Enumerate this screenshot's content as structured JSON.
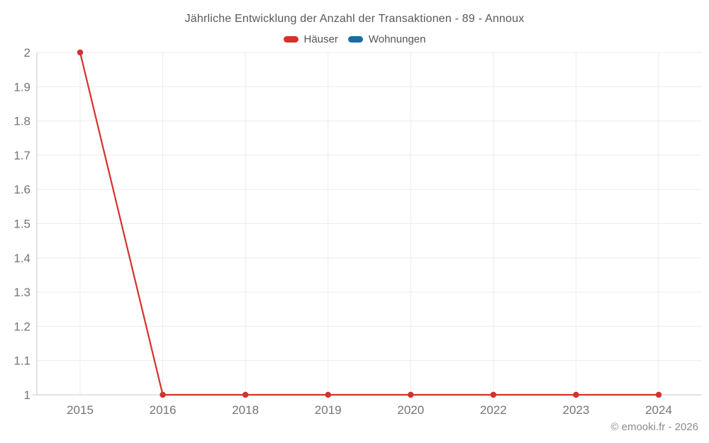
{
  "chart_data": {
    "type": "line",
    "title": "Jährliche Entwicklung der Anzahl der Transaktionen - 89 - Annoux",
    "categories": [
      "2015",
      "2016",
      "2018",
      "2019",
      "2020",
      "2022",
      "2023",
      "2024"
    ],
    "series": [
      {
        "name": "Häuser",
        "color": "#d5312d",
        "values": [
          2,
          1,
          1,
          1,
          1,
          1,
          1,
          1
        ]
      },
      {
        "name": "Wohnungen",
        "color": "#1a6ca8",
        "values": []
      }
    ],
    "ylim": [
      1,
      2
    ],
    "yticks": [
      1,
      1.1,
      1.2,
      1.3,
      1.4,
      1.5,
      1.6,
      1.7,
      1.8,
      1.9,
      2
    ],
    "ytick_labels": [
      "1",
      "1.1",
      "1.2",
      "1.3",
      "1.4",
      "1.5",
      "1.6",
      "1.7",
      "1.8",
      "1.9",
      "2"
    ],
    "grid": true,
    "legend_position": "top"
  },
  "colors": {
    "grid": "#ececec",
    "axis": "#c9c9c9",
    "tick_label": "#757575",
    "title": "#595959"
  },
  "footer": {
    "copyright": "© emooki.fr - 2026"
  }
}
